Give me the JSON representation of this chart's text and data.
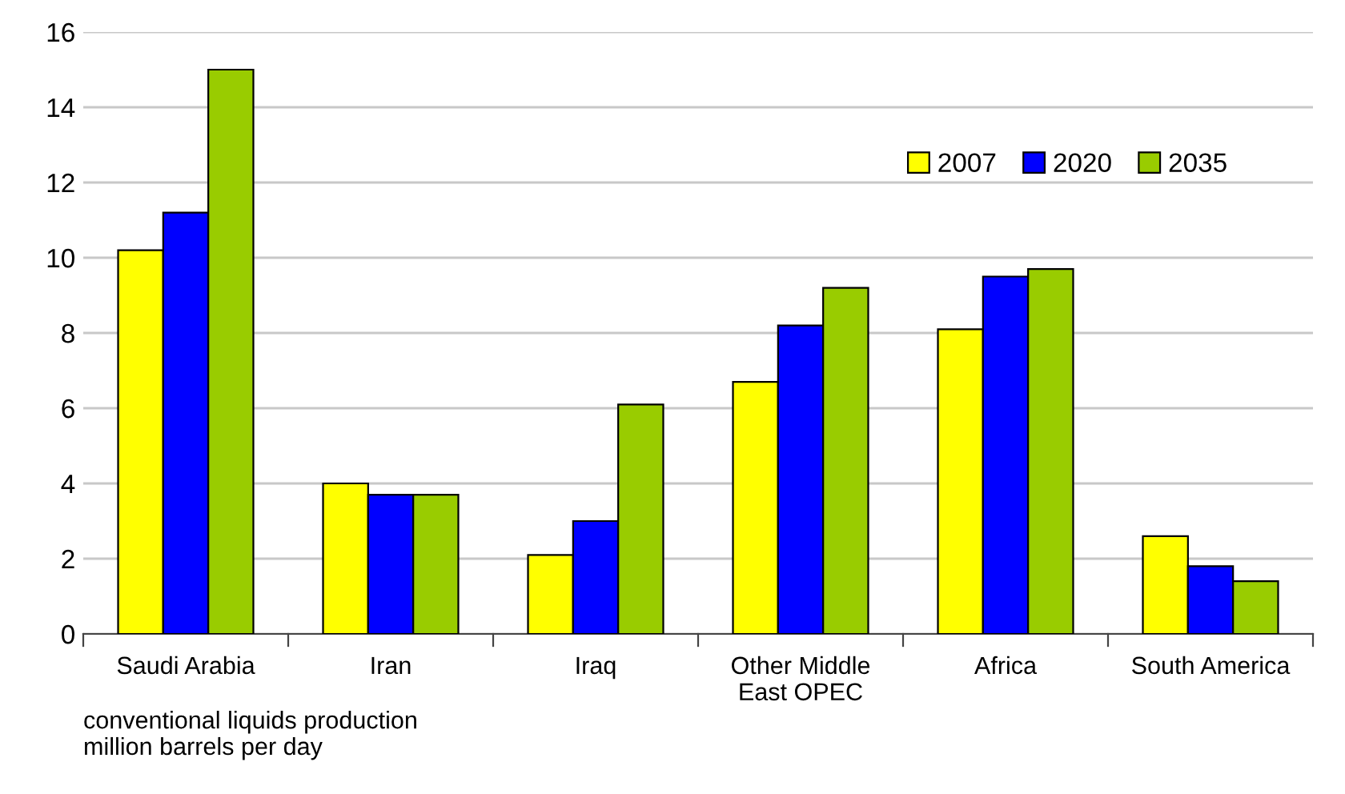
{
  "chart_data": {
    "type": "bar",
    "categories": [
      "Saudi Arabia",
      "Iran",
      "Iraq",
      "Other Middle\nEast OPEC",
      "Africa",
      "South America"
    ],
    "series": [
      {
        "name": "2007",
        "color": "#ffff00",
        "values": [
          10.2,
          4.0,
          2.1,
          6.7,
          8.1,
          2.6
        ]
      },
      {
        "name": "2020",
        "color": "#0000ff",
        "values": [
          11.2,
          3.7,
          3.0,
          8.2,
          9.5,
          1.8
        ]
      },
      {
        "name": "2035",
        "color": "#99cc00",
        "values": [
          15.0,
          3.7,
          6.1,
          9.2,
          9.7,
          1.4
        ]
      }
    ],
    "ylim": [
      0,
      16
    ],
    "yticks": [
      0,
      2,
      4,
      6,
      8,
      10,
      12,
      14,
      16
    ],
    "grid": "y",
    "legend": "top right",
    "annotations": [
      "conventional liquids production\nmillion barrels per day"
    ]
  }
}
